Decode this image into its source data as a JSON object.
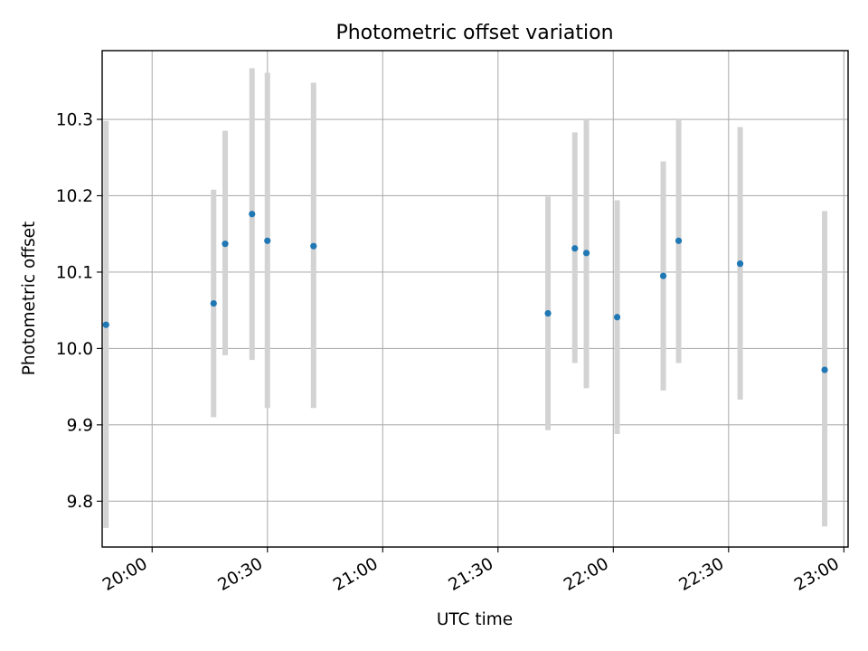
{
  "chart_data": {
    "type": "scatter",
    "title": "Photometric offset variation",
    "xlabel": "UTC time",
    "ylabel": "Photometric offset",
    "x_tick_labels": [
      "20:00",
      "20:30",
      "21:00",
      "21:30",
      "22:00",
      "22:30",
      "23:00"
    ],
    "x_tick_times": [
      "20:00",
      "20:30",
      "21:00",
      "21:30",
      "22:00",
      "22:30",
      "23:00"
    ],
    "y_tick_labels": [
      "9.8",
      "9.9",
      "10.0",
      "10.1",
      "10.2",
      "10.3"
    ],
    "y_ticks": [
      9.8,
      9.9,
      10.0,
      10.1,
      10.2,
      10.3
    ],
    "xlim": [
      "19:47",
      "23:00"
    ],
    "ylim": [
      9.74,
      10.39
    ],
    "grid": true,
    "point_color": "#1f77b4",
    "errorbar_color": "#d3d3d3",
    "points": [
      {
        "time": "19:48",
        "y": 10.031,
        "low": 9.765,
        "high": 10.298
      },
      {
        "time": "20:16",
        "y": 10.059,
        "low": 9.91,
        "high": 10.208
      },
      {
        "time": "20:19",
        "y": 10.137,
        "low": 9.991,
        "high": 10.285
      },
      {
        "time": "20:26",
        "y": 10.176,
        "low": 9.985,
        "high": 10.367
      },
      {
        "time": "20:30",
        "y": 10.141,
        "low": 9.922,
        "high": 10.361
      },
      {
        "time": "20:42",
        "y": 10.134,
        "low": 9.922,
        "high": 10.348
      },
      {
        "time": "21:43",
        "y": 10.046,
        "low": 9.893,
        "high": 10.199
      },
      {
        "time": "21:50",
        "y": 10.131,
        "low": 9.981,
        "high": 10.283
      },
      {
        "time": "21:53",
        "y": 10.125,
        "low": 9.948,
        "high": 10.3
      },
      {
        "time": "22:01",
        "y": 10.041,
        "low": 9.888,
        "high": 10.194
      },
      {
        "time": "22:13",
        "y": 10.095,
        "low": 9.945,
        "high": 10.245
      },
      {
        "time": "22:17",
        "y": 10.141,
        "low": 9.981,
        "high": 10.3
      },
      {
        "time": "22:33",
        "y": 10.111,
        "low": 9.933,
        "high": 10.29
      },
      {
        "time": "22:55",
        "y": 9.972,
        "low": 9.767,
        "high": 10.18
      }
    ]
  }
}
